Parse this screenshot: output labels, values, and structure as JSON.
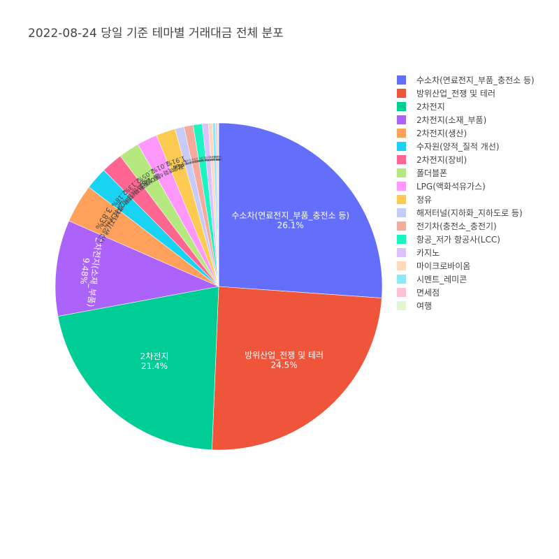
{
  "chart_data": {
    "type": "pie",
    "title": "2022-08-24 당일 기준 테마별 거래대금 전체 분포",
    "labels": [
      "수소차(연료전지_부품_충전소 등)",
      "방위산업_전쟁 및 테러",
      "2차전지",
      "2차전지(소재_부품)",
      "2차전지(생산)",
      "수자원(양적_질적 개선)",
      "2차전지(장비)",
      "폴더블폰",
      "LPG(액화석유가스)",
      "정유",
      "해저터널(지하화_지하도로 등)",
      "전기차(충전소_충전기)",
      "항공_저가 항공사(LCC)",
      "카지노",
      "마이크로바이옴",
      "시멘트_레미콘",
      "면세점",
      "여행"
    ],
    "percent_labels": [
      "26.1%",
      "24.5%",
      "21.4%",
      "9.48%",
      "3.83%",
      "2.18%",
      "2.13%",
      "2.05%",
      "2.01%",
      "1.91%",
      "0.9%",
      "0.9%",
      "0.9%",
      "0.6%",
      "0.4%",
      "0.3%",
      "0.2%",
      "0.1%"
    ],
    "values": [
      26.1,
      24.5,
      21.4,
      9.48,
      3.83,
      2.18,
      2.13,
      2.05,
      2.01,
      1.91,
      0.9,
      0.9,
      0.9,
      0.6,
      0.4,
      0.3,
      0.2,
      0.1
    ],
    "colors": [
      "#636efa",
      "#EF553B",
      "#00cc96",
      "#ab63fa",
      "#FFA15A",
      "#19d3f3",
      "#FF6692",
      "#B6E880",
      "#FF97FF",
      "#FECB52",
      "#c6cbf8",
      "#f5aa9d",
      "#1cf5c1",
      "#ddc1fd",
      "#ffd9bd",
      "#8ce9f9",
      "#ffc2d3",
      "#e2f6cf"
    ],
    "legend_position": "top-right"
  }
}
